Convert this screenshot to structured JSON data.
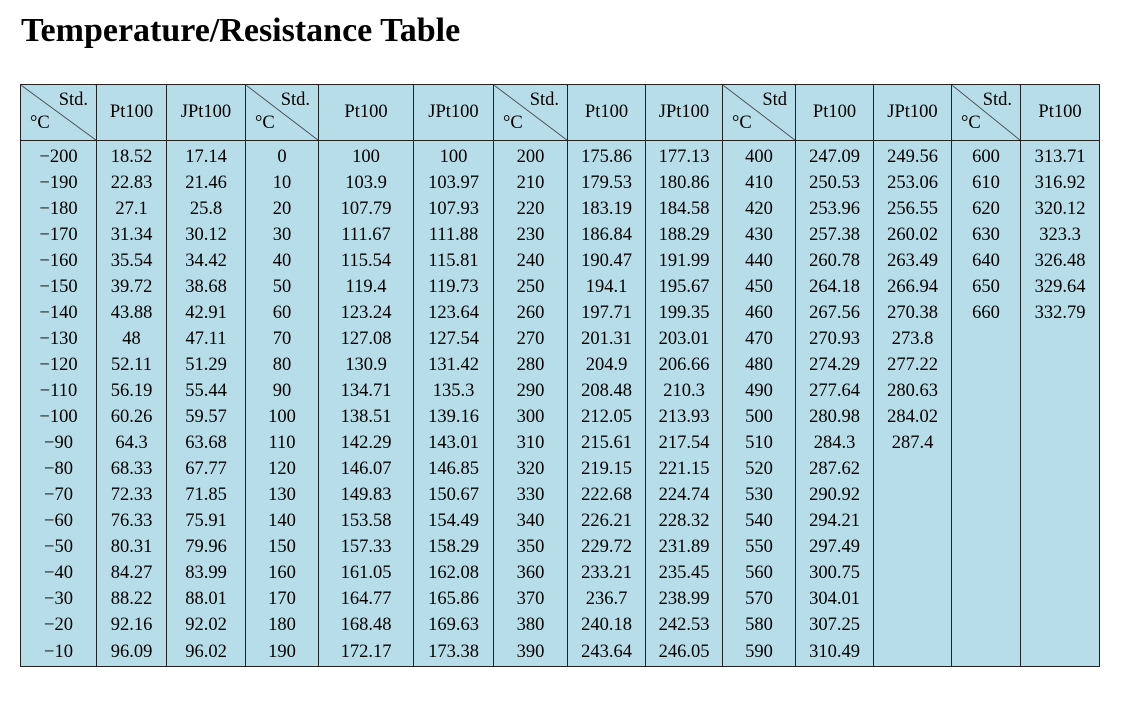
{
  "title": "Temperature/Resistance Table",
  "table": {
    "groups": [
      {
        "std": "Std.",
        "unit": "°C",
        "columns": [
          "Pt100",
          "JPt100"
        ],
        "rows": [
          [
            "−200",
            "18.52",
            "17.14"
          ],
          [
            "−190",
            "22.83",
            "21.46"
          ],
          [
            "−180",
            "27.1",
            "25.8"
          ],
          [
            "−170",
            "31.34",
            "30.12"
          ],
          [
            "−160",
            "35.54",
            "34.42"
          ],
          [
            "−150",
            "39.72",
            "38.68"
          ],
          [
            "−140",
            "43.88",
            "42.91"
          ],
          [
            "−130",
            "48",
            "47.11"
          ],
          [
            "−120",
            "52.11",
            "51.29"
          ],
          [
            "−110",
            "56.19",
            "55.44"
          ],
          [
            "−100",
            "60.26",
            "59.57"
          ],
          [
            "−90",
            "64.3",
            "63.68"
          ],
          [
            "−80",
            "68.33",
            "67.77"
          ],
          [
            "−70",
            "72.33",
            "71.85"
          ],
          [
            "−60",
            "76.33",
            "75.91"
          ],
          [
            "−50",
            "80.31",
            "79.96"
          ],
          [
            "−40",
            "84.27",
            "83.99"
          ],
          [
            "−30",
            "88.22",
            "88.01"
          ],
          [
            "−20",
            "92.16",
            "92.02"
          ],
          [
            "−10",
            "96.09",
            "96.02"
          ]
        ]
      },
      {
        "std": "Std.",
        "unit": "°C",
        "columns": [
          "Pt100",
          "JPt100"
        ],
        "rows": [
          [
            "0",
            "100",
            "100"
          ],
          [
            "10",
            "103.9",
            "103.97"
          ],
          [
            "20",
            "107.79",
            "107.93"
          ],
          [
            "30",
            "111.67",
            "111.88"
          ],
          [
            "40",
            "115.54",
            "115.81"
          ],
          [
            "50",
            "119.4",
            "119.73"
          ],
          [
            "60",
            "123.24",
            "123.64"
          ],
          [
            "70",
            "127.08",
            "127.54"
          ],
          [
            "80",
            "130.9",
            "131.42"
          ],
          [
            "90",
            "134.71",
            "135.3"
          ],
          [
            "100",
            "138.51",
            "139.16"
          ],
          [
            "110",
            "142.29",
            "143.01"
          ],
          [
            "120",
            "146.07",
            "146.85"
          ],
          [
            "130",
            "149.83",
            "150.67"
          ],
          [
            "140",
            "153.58",
            "154.49"
          ],
          [
            "150",
            "157.33",
            "158.29"
          ],
          [
            "160",
            "161.05",
            "162.08"
          ],
          [
            "170",
            "164.77",
            "165.86"
          ],
          [
            "180",
            "168.48",
            "169.63"
          ],
          [
            "190",
            "172.17",
            "173.38"
          ]
        ]
      },
      {
        "std": "Std.",
        "unit": "°C",
        "columns": [
          "Pt100",
          "JPt100"
        ],
        "rows": [
          [
            "200",
            "175.86",
            "177.13"
          ],
          [
            "210",
            "179.53",
            "180.86"
          ],
          [
            "220",
            "183.19",
            "184.58"
          ],
          [
            "230",
            "186.84",
            "188.29"
          ],
          [
            "240",
            "190.47",
            "191.99"
          ],
          [
            "250",
            "194.1",
            "195.67"
          ],
          [
            "260",
            "197.71",
            "199.35"
          ],
          [
            "270",
            "201.31",
            "203.01"
          ],
          [
            "280",
            "204.9",
            "206.66"
          ],
          [
            "290",
            "208.48",
            "210.3"
          ],
          [
            "300",
            "212.05",
            "213.93"
          ],
          [
            "310",
            "215.61",
            "217.54"
          ],
          [
            "320",
            "219.15",
            "221.15"
          ],
          [
            "330",
            "222.68",
            "224.74"
          ],
          [
            "340",
            "226.21",
            "228.32"
          ],
          [
            "350",
            "229.72",
            "231.89"
          ],
          [
            "360",
            "233.21",
            "235.45"
          ],
          [
            "370",
            "236.7",
            "238.99"
          ],
          [
            "380",
            "240.18",
            "242.53"
          ],
          [
            "390",
            "243.64",
            "246.05"
          ]
        ]
      },
      {
        "std": "Std",
        "unit": "°C",
        "columns": [
          "Pt100",
          "JPt100"
        ],
        "rows": [
          [
            "400",
            "247.09",
            "249.56"
          ],
          [
            "410",
            "250.53",
            "253.06"
          ],
          [
            "420",
            "253.96",
            "256.55"
          ],
          [
            "430",
            "257.38",
            "260.02"
          ],
          [
            "440",
            "260.78",
            "263.49"
          ],
          [
            "450",
            "264.18",
            "266.94"
          ],
          [
            "460",
            "267.56",
            "270.38"
          ],
          [
            "470",
            "270.93",
            "273.8"
          ],
          [
            "480",
            "274.29",
            "277.22"
          ],
          [
            "490",
            "277.64",
            "280.63"
          ],
          [
            "500",
            "280.98",
            "284.02"
          ],
          [
            "510",
            "284.3",
            "287.4"
          ],
          [
            "520",
            "287.62"
          ],
          [
            "530",
            "290.92"
          ],
          [
            "540",
            "294.21"
          ],
          [
            "550",
            "297.49"
          ],
          [
            "560",
            "300.75"
          ],
          [
            "570",
            "304.01"
          ],
          [
            "580",
            "307.25"
          ],
          [
            "590",
            "310.49"
          ]
        ]
      },
      {
        "std": "Std.",
        "unit": "°C",
        "columns": [
          "Pt100"
        ],
        "rows": [
          [
            "600",
            "313.71"
          ],
          [
            "610",
            "316.92"
          ],
          [
            "620",
            "320.12"
          ],
          [
            "630",
            "323.3"
          ],
          [
            "640",
            "326.48"
          ],
          [
            "650",
            "329.64"
          ],
          [
            "660",
            "332.79"
          ]
        ]
      }
    ]
  }
}
